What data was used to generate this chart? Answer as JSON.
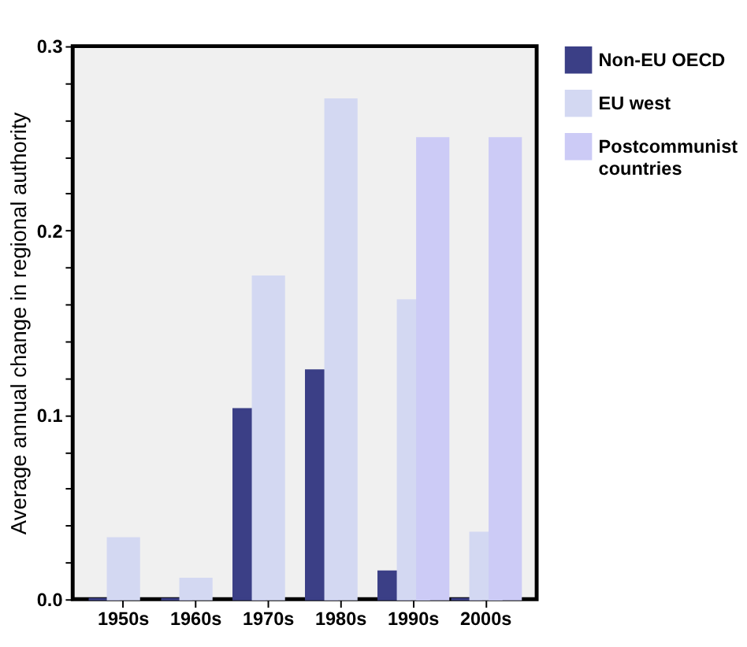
{
  "chart_data": {
    "type": "bar",
    "ylabel": "Average annual change in regional authority",
    "categories": [
      "1950s",
      "1960s",
      "1970s",
      "1980s",
      "1990s",
      "2000s"
    ],
    "series": [
      {
        "name": "Non-EU OECD",
        "color": "#3b3f86",
        "values": [
          0,
          0,
          0.103,
          0.124,
          0.015,
          0
        ]
      },
      {
        "name": "EU west",
        "color": "#d3d8f2",
        "values": [
          0.033,
          0.011,
          0.175,
          0.271,
          0.162,
          0.036
        ]
      },
      {
        "name": "Postcommunist countries",
        "color": "#cccbf6",
        "values": [
          null,
          null,
          null,
          null,
          0.25,
          0.25
        ]
      }
    ],
    "ylim": [
      0,
      0.3
    ],
    "yticks": [
      {
        "value": 0,
        "label": "0.0"
      },
      {
        "value": 0.02,
        "label": null
      },
      {
        "value": 0.04,
        "label": null
      },
      {
        "value": 0.06,
        "label": null
      },
      {
        "value": 0.08,
        "label": null
      },
      {
        "value": 0.1,
        "label": "0.1"
      },
      {
        "value": 0.12,
        "label": null
      },
      {
        "value": 0.14,
        "label": null
      },
      {
        "value": 0.16,
        "label": null
      },
      {
        "value": 0.18,
        "label": null
      },
      {
        "value": 0.2,
        "label": "0.2"
      },
      {
        "value": 0.22,
        "label": null
      },
      {
        "value": 0.24,
        "label": null
      },
      {
        "value": 0.26,
        "label": null
      },
      {
        "value": 0.28,
        "label": null
      },
      {
        "value": 0.3,
        "label": "0.3"
      }
    ],
    "grid": false,
    "legend": "top right"
  }
}
